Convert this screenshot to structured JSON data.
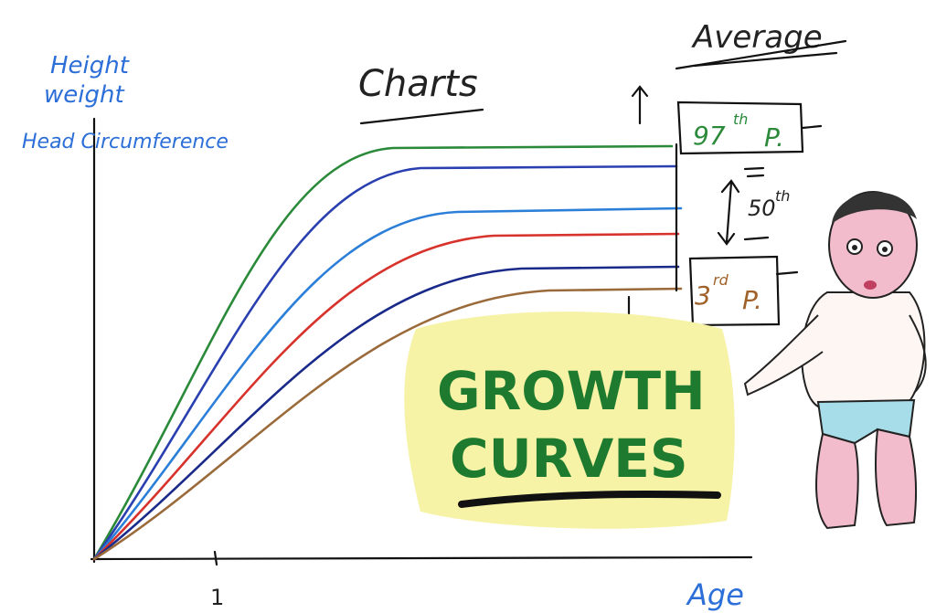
{
  "y_axis_labels": [
    "Height",
    "weight",
    "Head Circumference"
  ],
  "x_axis_label": "Age",
  "x_tick": "1",
  "title": "Charts",
  "average": "Average",
  "p97": {
    "number": "97",
    "suffix": "th",
    "letter": "P."
  },
  "p50": {
    "number": "50",
    "suffix": "th"
  },
  "p3": {
    "number": "3",
    "suffix": "rd",
    "letter": "P."
  },
  "headline": [
    "GROWTH",
    "CURVES"
  ]
}
